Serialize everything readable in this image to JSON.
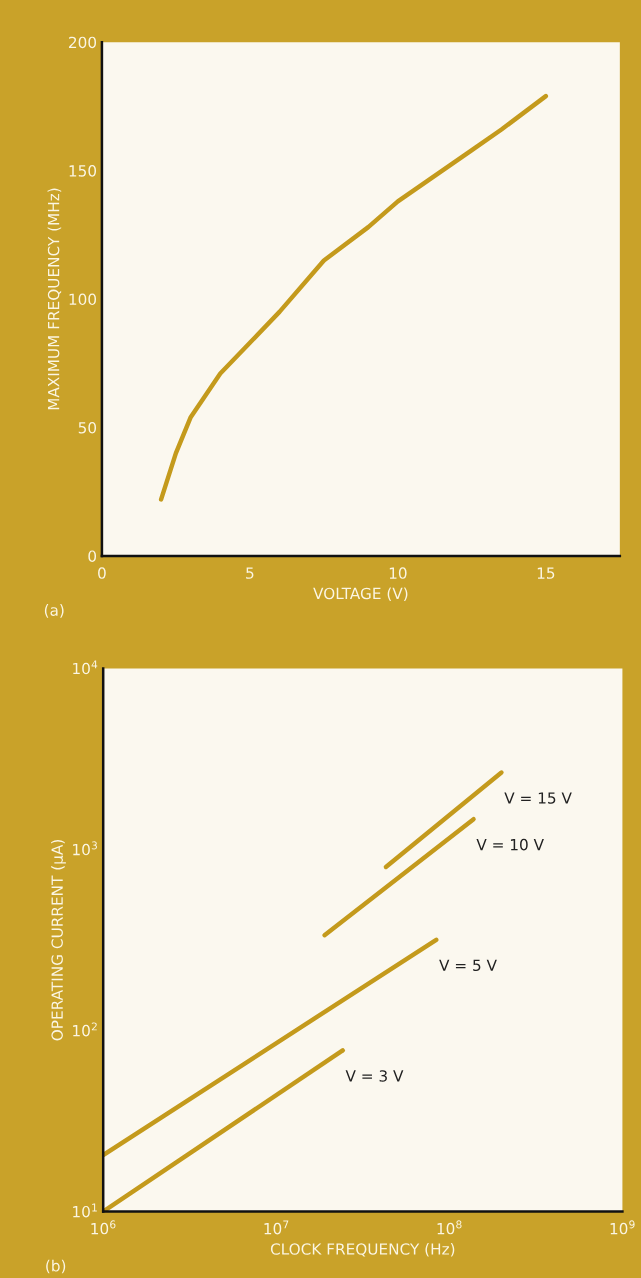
{
  "chart_data": [
    {
      "type": "line",
      "xlabel": "VOLTAGE (V)",
      "ylabel": "MAXIMUM FREQUENCY (MHz)",
      "x": [
        2,
        2.5,
        3,
        4,
        5,
        6,
        7.5,
        9,
        10,
        11,
        12.5,
        13.5,
        15
      ],
      "series": [
        {
          "color": "#c49a1c",
          "values": [
            22,
            40,
            54,
            71,
            83,
            95,
            115,
            128,
            138,
            146,
            158,
            166,
            179
          ]
        }
      ],
      "xlim": [
        0,
        17.5
      ],
      "ylim": [
        0,
        200
      ],
      "xticks": [
        0,
        5,
        10,
        15
      ],
      "yticks": [
        0,
        50,
        100,
        150,
        200
      ],
      "grid": false,
      "legend": false,
      "marker": "none",
      "line_style": "solid",
      "annotations": [
        "(a)"
      ]
    },
    {
      "type": "line",
      "xlabel": "CLOCK FREQUENCY (Hz)",
      "ylabel": "OPERATING CURRENT (μA)",
      "log": "xy",
      "series": [
        {
          "name": "V = 15 V",
          "color": "#c49a1c",
          "x": [
            43000000,
            200000000
          ],
          "values": [
            800,
            2660
          ]
        },
        {
          "name": "V = 10 V",
          "color": "#c49a1c",
          "x": [
            19000000,
            138000000
          ],
          "values": [
            336,
            1470
          ]
        },
        {
          "name": "V = 5 V",
          "color": "#c49a1c",
          "x": [
            1000000,
            84000000
          ],
          "values": [
            20.5,
            317
          ]
        },
        {
          "name": "V = 3 V",
          "color": "#c49a1c",
          "x": [
            1000000,
            24200000
          ],
          "values": [
            10,
            77.6
          ]
        }
      ],
      "xlim": [
        1000000,
        1000000000
      ],
      "ylim": [
        10,
        10000
      ],
      "xticks": [
        {
          "value": 1000000,
          "label": "10$^{6}$"
        },
        {
          "value": 10000000,
          "label": "10$^{7}$"
        },
        {
          "value": 100000000,
          "label": "10$^{8}$"
        },
        {
          "value": 1000000000,
          "label": "10$^{9}$"
        }
      ],
      "yticks": [
        {
          "value": 10,
          "label": "10$^{1}$"
        },
        {
          "value": 100,
          "label": "10$^{2}$"
        },
        {
          "value": 1000,
          "label": "10$^{3}$"
        },
        {
          "value": 10000,
          "label": "10$^{4}$"
        }
      ],
      "grid": false,
      "legend": false,
      "marker": "none",
      "line_style": "solid",
      "annotations": [
        "(b)"
      ]
    }
  ]
}
